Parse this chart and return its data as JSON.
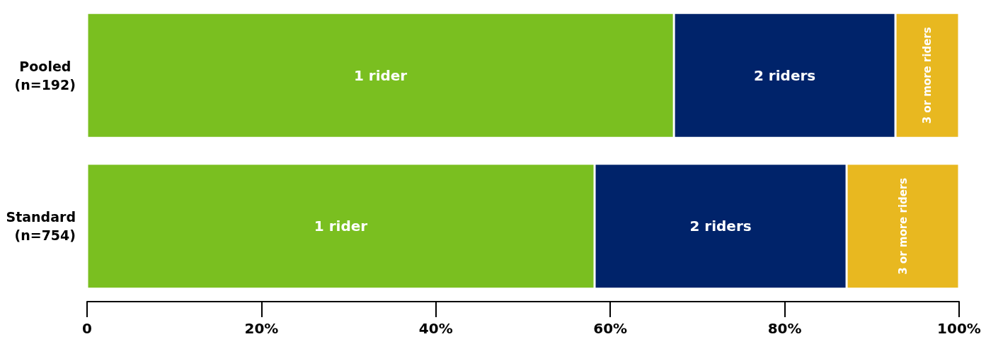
{
  "chart_data": {
    "type": "bar",
    "orientation": "horizontal",
    "stacked": true,
    "legend": false,
    "grid": false,
    "categories": [
      "Pooled (n=192)",
      "Standard (n=754)"
    ],
    "series": [
      {
        "name": "1 rider",
        "color": "#7abf20",
        "values": [
          67.3,
          58.2
        ]
      },
      {
        "name": "2 riders",
        "color": "#00236a",
        "values": [
          25.4,
          28.9
        ]
      },
      {
        "name": "3 or more riders",
        "color": "#e8b820",
        "values": [
          7.3,
          12.9
        ]
      }
    ],
    "xlim": [
      0,
      100
    ],
    "xticks": [
      0,
      {
        "value": 20,
        "label": "20%"
      },
      {
        "value": 40,
        "label": "40%"
      },
      {
        "value": 60,
        "label": "60%"
      },
      {
        "value": 80,
        "label": "80%"
      },
      {
        "value": 100,
        "label": "100%"
      }
    ]
  }
}
